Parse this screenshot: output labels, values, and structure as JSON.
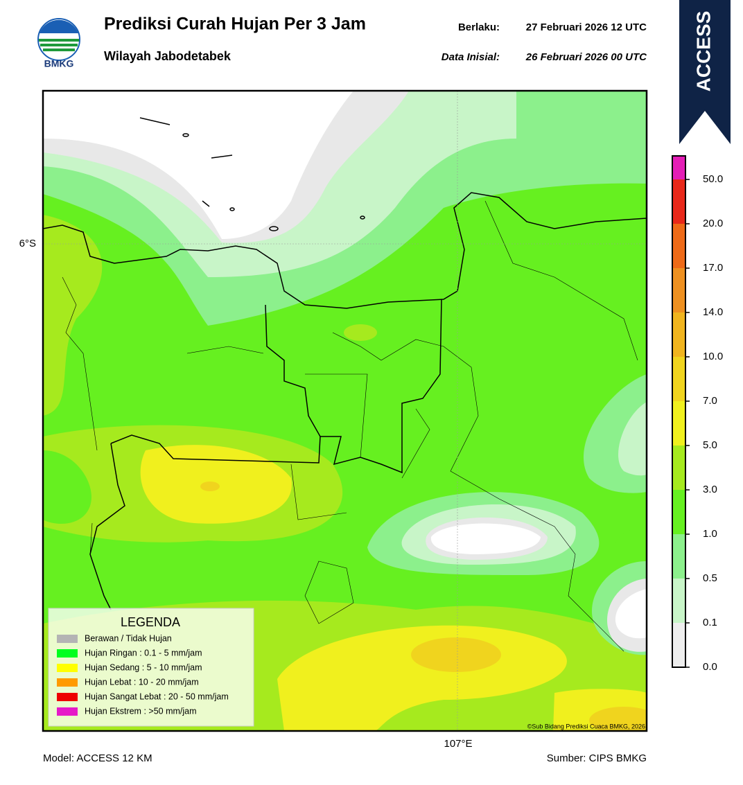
{
  "header": {
    "logo_text": "BMKG",
    "title": "Prediksi Curah Hujan Per 3 Jam",
    "subtitle": "Wilayah Jabodetabek",
    "valid_label": "Berlaku:",
    "valid_time": "27 Februari 2026 12 UTC",
    "init_label": "Data Inisial:",
    "init_time": "26 Februari 2026 00 UTC",
    "badge": "ACCESS"
  },
  "map": {
    "lat_label": "6°S",
    "lon_label": "107°E",
    "credit": "©Sub Bidang Prediksi Cuaca BMKG, 2026"
  },
  "legend": {
    "title": "LEGENDA",
    "items": [
      {
        "label": "Berawan / Tidak Hujan",
        "color": "#b4b4b4"
      },
      {
        "label": "Hujan Ringan : 0.1 - 5 mm/jam",
        "color": "#00ff1e"
      },
      {
        "label": "Hujan Sedang : 5 - 10 mm/jam",
        "color": "#ffff00"
      },
      {
        "label": "Hujan Lebat : 10 - 20 mm/jam",
        "color": "#ff9a00"
      },
      {
        "label": "Hujan Sangat Lebat : 20 - 50 mm/jam",
        "color": "#ee0000"
      },
      {
        "label": "Hujan Ekstrem : >50 mm/jam",
        "color": "#e619c8"
      }
    ]
  },
  "colorbar": {
    "ticks": [
      "0.0",
      "0.1",
      "0.5",
      "1.0",
      "3.0",
      "5.0",
      "7.0",
      "10.0",
      "14.0",
      "17.0",
      "20.0",
      "50.0"
    ],
    "colors": [
      "#eeeeee",
      "#c8f5c8",
      "#8cf08c",
      "#66f020",
      "#a6ea1e",
      "#f0f01e",
      "#f0d41e",
      "#f0b41e",
      "#ee9020",
      "#ee6a18",
      "#e8281a",
      "#e41eb6"
    ]
  },
  "footer": {
    "model": "Model: ACCESS 12 KM",
    "source": "Sumber: CIPS BMKG"
  }
}
